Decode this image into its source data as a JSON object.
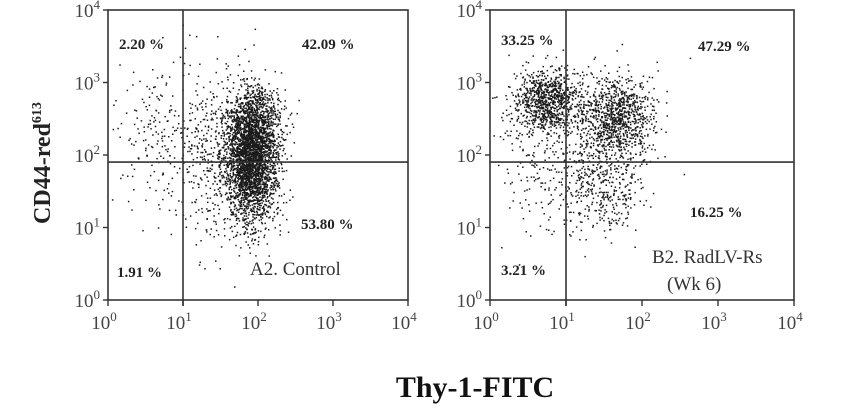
{
  "figure": {
    "xlabel": "Thy-1-FITC",
    "ylabel": "CD44-red613"
  },
  "chart_data": [
    {
      "type": "scatter",
      "id": "A2",
      "caption": [
        "A2. Control"
      ],
      "xscale": "log",
      "yscale": "log",
      "xlim": [
        1,
        10000
      ],
      "ylim": [
        1,
        10000
      ],
      "x_ticks": [
        "10^0",
        "10^1",
        "10^2",
        "10^3",
        "10^4"
      ],
      "y_ticks": [
        "10^0",
        "10^1",
        "10^2",
        "10^3",
        "10^4"
      ],
      "gate": {
        "x": 10,
        "y": 80
      },
      "quadrants": {
        "upper_left": "2.20 %",
        "upper_right": "42.09 %",
        "lower_left": "1.91 %",
        "lower_right": "53.80 %"
      },
      "clusters": [
        {
          "cx": 1.9,
          "cy": 1.9,
          "sx": 0.18,
          "sy": 0.42,
          "n": 2600
        },
        {
          "cx": 1.95,
          "cy": 2.45,
          "sx": 0.2,
          "sy": 0.3,
          "n": 700
        },
        {
          "cx": 0.6,
          "cy": 2.3,
          "sx": 0.25,
          "sy": 0.5,
          "n": 150
        },
        {
          "cx": 1.4,
          "cy": 2.0,
          "sx": 0.3,
          "sy": 0.6,
          "n": 400
        }
      ]
    },
    {
      "type": "scatter",
      "id": "B2",
      "caption": [
        "B2. RadLV-Rs",
        "(Wk 6)"
      ],
      "xscale": "log",
      "yscale": "log",
      "xlim": [
        1,
        10000
      ],
      "ylim": [
        1,
        10000
      ],
      "x_ticks": [
        "10^0",
        "10^1",
        "10^2",
        "10^3",
        "10^4"
      ],
      "y_ticks": [
        "10^0",
        "10^1",
        "10^2",
        "10^3",
        "10^4"
      ],
      "gate": {
        "x": 10,
        "y": 80
      },
      "quadrants": {
        "upper_left": "33.25 %",
        "upper_right": "47.29 %",
        "lower_left": "3.21 %",
        "lower_right": "16.25 %"
      },
      "clusters": [
        {
          "cx": 0.75,
          "cy": 2.75,
          "sx": 0.22,
          "sy": 0.22,
          "n": 900
        },
        {
          "cx": 1.65,
          "cy": 2.5,
          "sx": 0.25,
          "sy": 0.3,
          "n": 1000
        },
        {
          "cx": 1.45,
          "cy": 1.6,
          "sx": 0.3,
          "sy": 0.35,
          "n": 450
        },
        {
          "cx": 0.6,
          "cy": 2.0,
          "sx": 0.25,
          "sy": 0.45,
          "n": 150
        }
      ]
    }
  ]
}
